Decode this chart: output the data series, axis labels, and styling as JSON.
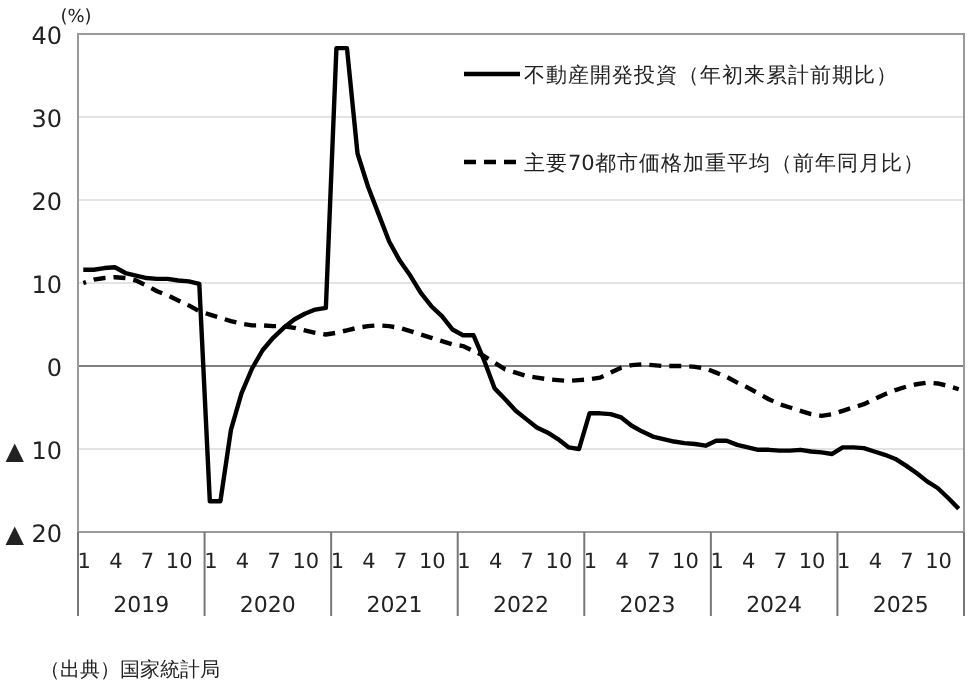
{
  "chart_data": {
    "type": "line",
    "ylabel": "(%)",
    "categories": [
      "1",
      null,
      null,
      "4",
      null,
      null,
      "7",
      null,
      null,
      "10",
      null,
      null,
      "1",
      null,
      null,
      "4",
      null,
      null,
      "7",
      null,
      null,
      "10",
      null,
      null,
      "1",
      null,
      null,
      "4",
      null,
      null,
      "7",
      null,
      null,
      "10",
      null,
      null,
      "1",
      null,
      null,
      "4",
      null,
      null,
      "7",
      null,
      null,
      "10",
      null,
      null,
      "1",
      null,
      null,
      "4",
      null,
      null,
      "7",
      null,
      null,
      "10",
      null,
      null,
      "1",
      null,
      null,
      "4",
      null,
      null,
      "7",
      null,
      null,
      "10",
      null,
      null,
      "1",
      null,
      null,
      "4",
      null,
      null,
      "7",
      null,
      null,
      "10",
      null,
      null
    ],
    "series": [
      {
        "name": "不動産開発投資（年初来累計前期比）",
        "color": "#000000",
        "line_style": "solid",
        "values": [
          11.6,
          11.6,
          11.8,
          11.9,
          11.2,
          10.9,
          10.6,
          10.5,
          10.5,
          10.3,
          10.2,
          9.9,
          -16.3,
          -16.3,
          -7.7,
          -3.3,
          -0.3,
          1.9,
          3.4,
          4.6,
          5.6,
          6.3,
          6.8,
          7.0,
          38.3,
          38.3,
          25.6,
          21.6,
          18.3,
          15.0,
          12.7,
          10.9,
          8.8,
          7.2,
          6.0,
          4.4,
          3.7,
          3.7,
          0.7,
          -2.7,
          -4.0,
          -5.4,
          -6.4,
          -7.4,
          -8.0,
          -8.8,
          -9.8,
          -10.0,
          -5.7,
          -5.7,
          -5.8,
          -6.2,
          -7.2,
          -7.9,
          -8.5,
          -8.8,
          -9.1,
          -9.3,
          -9.4,
          -9.6,
          -9.0,
          -9.0,
          -9.5,
          -9.8,
          -10.1,
          -10.1,
          -10.2,
          -10.2,
          -10.1,
          -10.3,
          -10.4,
          -10.6,
          -9.8,
          -9.8,
          -9.9,
          -10.3,
          -10.7,
          -11.2,
          -12.0,
          -12.9,
          -13.9,
          -14.7,
          -15.9,
          -17.2
        ]
      },
      {
        "name": "主要70都市価格加重平均（前年同月比）",
        "color": "#000000",
        "line_style": "dashed",
        "values": [
          10.0,
          10.4,
          10.6,
          10.7,
          10.6,
          10.3,
          9.7,
          9.0,
          8.5,
          7.9,
          7.3,
          6.6,
          6.2,
          5.8,
          5.4,
          5.1,
          4.9,
          4.9,
          4.8,
          4.8,
          4.6,
          4.3,
          4.0,
          3.8,
          4.0,
          4.3,
          4.6,
          4.8,
          4.9,
          4.8,
          4.6,
          4.2,
          3.8,
          3.4,
          3.0,
          2.6,
          2.4,
          1.8,
          1.2,
          0.4,
          -0.4,
          -0.8,
          -1.2,
          -1.4,
          -1.6,
          -1.7,
          -1.8,
          -1.7,
          -1.6,
          -1.4,
          -0.8,
          -0.2,
          0.1,
          0.2,
          0.1,
          0.0,
          0.0,
          0.0,
          -0.1,
          -0.3,
          -0.8,
          -1.3,
          -2.0,
          -2.6,
          -3.3,
          -4.0,
          -4.6,
          -5.0,
          -5.4,
          -5.8,
          -6.0,
          -5.8,
          -5.4,
          -5.0,
          -4.6,
          -4.0,
          -3.4,
          -2.9,
          -2.5,
          -2.2,
          -2.0,
          -2.1,
          -2.4,
          -2.8
        ]
      }
    ],
    "ylim": [
      -20,
      40
    ],
    "yticks": [
      {
        "value": -20,
        "label": "▲ 20"
      },
      {
        "value": -10,
        "label": "▲ 10"
      },
      0,
      10,
      20,
      30,
      40
    ],
    "ref_lines": [
      {
        "axis": "y",
        "value": 0,
        "color": "#7f7f7f"
      }
    ],
    "grid": "y",
    "legend": "top right",
    "annotations": [
      "2019",
      "2020",
      "2021",
      "2022",
      "2023",
      "2024",
      "2025",
      "（出典）国家統計局"
    ]
  }
}
